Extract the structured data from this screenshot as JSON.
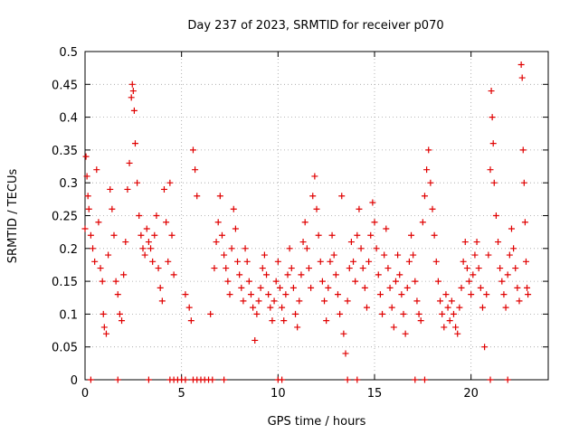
{
  "chart_data": {
    "type": "scatter",
    "title": "Day 237 of 2023, SRMTID for receiver p070",
    "xlabel": "GPS time / hours",
    "ylabel": "SRMTID / TECUs",
    "xlim": [
      0,
      24
    ],
    "ylim": [
      0,
      0.5
    ],
    "x_ticks": [
      0,
      5,
      10,
      15,
      20
    ],
    "x_tick_labels": [
      "0",
      "5",
      "10",
      "15",
      "20"
    ],
    "y_ticks": [
      0,
      0.05,
      0.1,
      0.15,
      0.2,
      0.25,
      0.3,
      0.35,
      0.4,
      0.45,
      0.5
    ],
    "y_tick_labels": [
      "0",
      "0.05",
      "0.1",
      "0.15",
      "0.2",
      "0.25",
      "0.3",
      "0.35",
      "0.4",
      "0.45",
      "0.5"
    ],
    "grid": true,
    "marker": "+",
    "series": [
      {
        "name": "SRMTID",
        "color": "#e00000",
        "points": [
          [
            0.0,
            0.23
          ],
          [
            0.05,
            0.34
          ],
          [
            0.1,
            0.31
          ],
          [
            0.15,
            0.28
          ],
          [
            0.2,
            0.26
          ],
          [
            0.3,
            0.22
          ],
          [
            0.4,
            0.2
          ],
          [
            0.5,
            0.18
          ],
          [
            0.6,
            0.32
          ],
          [
            0.7,
            0.24
          ],
          [
            0.8,
            0.17
          ],
          [
            0.9,
            0.15
          ],
          [
            0.95,
            0.1
          ],
          [
            1.0,
            0.08
          ],
          [
            1.1,
            0.07
          ],
          [
            1.2,
            0.19
          ],
          [
            1.3,
            0.29
          ],
          [
            1.4,
            0.26
          ],
          [
            1.5,
            0.22
          ],
          [
            1.6,
            0.15
          ],
          [
            1.7,
            0.13
          ],
          [
            1.8,
            0.1
          ],
          [
            1.9,
            0.09
          ],
          [
            2.0,
            0.16
          ],
          [
            2.1,
            0.21
          ],
          [
            2.2,
            0.29
          ],
          [
            2.3,
            0.33
          ],
          [
            2.4,
            0.43
          ],
          [
            2.45,
            0.45
          ],
          [
            2.5,
            0.44
          ],
          [
            2.55,
            0.41
          ],
          [
            2.6,
            0.36
          ],
          [
            2.7,
            0.3
          ],
          [
            2.8,
            0.25
          ],
          [
            2.9,
            0.22
          ],
          [
            3.0,
            0.2
          ],
          [
            3.1,
            0.19
          ],
          [
            3.2,
            0.23
          ],
          [
            3.3,
            0.21
          ],
          [
            3.4,
            0.2
          ],
          [
            3.5,
            0.18
          ],
          [
            3.6,
            0.22
          ],
          [
            3.7,
            0.25
          ],
          [
            3.8,
            0.17
          ],
          [
            3.9,
            0.14
          ],
          [
            4.0,
            0.12
          ],
          [
            4.1,
            0.29
          ],
          [
            4.2,
            0.24
          ],
          [
            4.3,
            0.18
          ],
          [
            4.4,
            0.3
          ],
          [
            4.5,
            0.22
          ],
          [
            4.6,
            0.16
          ],
          [
            5.2,
            0.13
          ],
          [
            5.4,
            0.11
          ],
          [
            5.5,
            0.09
          ],
          [
            5.6,
            0.35
          ],
          [
            5.7,
            0.32
          ],
          [
            5.8,
            0.28
          ],
          [
            6.5,
            0.1
          ],
          [
            6.7,
            0.17
          ],
          [
            6.8,
            0.21
          ],
          [
            6.9,
            0.24
          ],
          [
            7.0,
            0.28
          ],
          [
            7.1,
            0.22
          ],
          [
            7.2,
            0.19
          ],
          [
            7.3,
            0.17
          ],
          [
            7.4,
            0.15
          ],
          [
            7.5,
            0.13
          ],
          [
            7.6,
            0.2
          ],
          [
            7.7,
            0.26
          ],
          [
            7.8,
            0.23
          ],
          [
            7.9,
            0.18
          ],
          [
            8.0,
            0.16
          ],
          [
            8.1,
            0.14
          ],
          [
            8.2,
            0.12
          ],
          [
            8.3,
            0.2
          ],
          [
            8.4,
            0.18
          ],
          [
            8.5,
            0.15
          ],
          [
            8.6,
            0.13
          ],
          [
            8.7,
            0.11
          ],
          [
            8.8,
            0.06
          ],
          [
            8.9,
            0.1
          ],
          [
            9.0,
            0.12
          ],
          [
            9.1,
            0.14
          ],
          [
            9.2,
            0.17
          ],
          [
            9.3,
            0.19
          ],
          [
            9.4,
            0.16
          ],
          [
            9.5,
            0.13
          ],
          [
            9.6,
            0.11
          ],
          [
            9.7,
            0.09
          ],
          [
            9.8,
            0.12
          ],
          [
            9.9,
            0.15
          ],
          [
            10.0,
            0.18
          ],
          [
            10.1,
            0.14
          ],
          [
            10.2,
            0.11
          ],
          [
            10.3,
            0.09
          ],
          [
            10.4,
            0.13
          ],
          [
            10.5,
            0.16
          ],
          [
            10.6,
            0.2
          ],
          [
            10.7,
            0.17
          ],
          [
            10.8,
            0.14
          ],
          [
            10.9,
            0.1
          ],
          [
            11.0,
            0.08
          ],
          [
            11.1,
            0.12
          ],
          [
            11.2,
            0.16
          ],
          [
            11.3,
            0.21
          ],
          [
            11.4,
            0.24
          ],
          [
            11.5,
            0.2
          ],
          [
            11.6,
            0.17
          ],
          [
            11.7,
            0.14
          ],
          [
            11.8,
            0.28
          ],
          [
            11.9,
            0.31
          ],
          [
            12.0,
            0.26
          ],
          [
            12.1,
            0.22
          ],
          [
            12.2,
            0.18
          ],
          [
            12.3,
            0.15
          ],
          [
            12.4,
            0.12
          ],
          [
            12.5,
            0.09
          ],
          [
            12.6,
            0.14
          ],
          [
            12.7,
            0.18
          ],
          [
            12.8,
            0.22
          ],
          [
            12.9,
            0.19
          ],
          [
            13.0,
            0.16
          ],
          [
            13.1,
            0.13
          ],
          [
            13.2,
            0.1
          ],
          [
            13.3,
            0.28
          ],
          [
            13.4,
            0.07
          ],
          [
            13.5,
            0.04
          ],
          [
            13.6,
            0.12
          ],
          [
            13.7,
            0.17
          ],
          [
            13.8,
            0.21
          ],
          [
            13.9,
            0.18
          ],
          [
            14.0,
            0.15
          ],
          [
            14.1,
            0.22
          ],
          [
            14.2,
            0.26
          ],
          [
            14.3,
            0.2
          ],
          [
            14.4,
            0.17
          ],
          [
            14.5,
            0.14
          ],
          [
            14.6,
            0.11
          ],
          [
            14.7,
            0.18
          ],
          [
            14.8,
            0.22
          ],
          [
            14.9,
            0.27
          ],
          [
            15.0,
            0.24
          ],
          [
            15.1,
            0.2
          ],
          [
            15.2,
            0.16
          ],
          [
            15.3,
            0.13
          ],
          [
            15.4,
            0.1
          ],
          [
            15.5,
            0.19
          ],
          [
            15.6,
            0.23
          ],
          [
            15.7,
            0.17
          ],
          [
            15.8,
            0.14
          ],
          [
            15.9,
            0.11
          ],
          [
            16.0,
            0.08
          ],
          [
            16.1,
            0.15
          ],
          [
            16.2,
            0.19
          ],
          [
            16.3,
            0.16
          ],
          [
            16.4,
            0.13
          ],
          [
            16.5,
            0.1
          ],
          [
            16.6,
            0.07
          ],
          [
            16.7,
            0.14
          ],
          [
            16.8,
            0.18
          ],
          [
            16.9,
            0.22
          ],
          [
            17.0,
            0.19
          ],
          [
            17.1,
            0.15
          ],
          [
            17.2,
            0.12
          ],
          [
            17.3,
            0.1
          ],
          [
            17.4,
            0.09
          ],
          [
            17.5,
            0.24
          ],
          [
            17.6,
            0.28
          ],
          [
            17.7,
            0.32
          ],
          [
            17.8,
            0.35
          ],
          [
            17.9,
            0.3
          ],
          [
            18.0,
            0.26
          ],
          [
            18.1,
            0.22
          ],
          [
            18.2,
            0.18
          ],
          [
            18.3,
            0.15
          ],
          [
            18.4,
            0.12
          ],
          [
            18.5,
            0.1
          ],
          [
            18.6,
            0.08
          ],
          [
            18.7,
            0.13
          ],
          [
            18.8,
            0.11
          ],
          [
            18.9,
            0.09
          ],
          [
            19.0,
            0.12
          ],
          [
            19.1,
            0.1
          ],
          [
            19.2,
            0.08
          ],
          [
            19.3,
            0.07
          ],
          [
            19.4,
            0.11
          ],
          [
            19.5,
            0.14
          ],
          [
            19.6,
            0.18
          ],
          [
            19.7,
            0.21
          ],
          [
            19.8,
            0.17
          ],
          [
            19.9,
            0.15
          ],
          [
            20.0,
            0.13
          ],
          [
            20.1,
            0.16
          ],
          [
            20.2,
            0.19
          ],
          [
            20.3,
            0.21
          ],
          [
            20.4,
            0.17
          ],
          [
            20.5,
            0.14
          ],
          [
            20.6,
            0.11
          ],
          [
            20.7,
            0.05
          ],
          [
            20.8,
            0.13
          ],
          [
            20.9,
            0.19
          ],
          [
            21.0,
            0.32
          ],
          [
            21.05,
            0.44
          ],
          [
            21.1,
            0.4
          ],
          [
            21.15,
            0.36
          ],
          [
            21.2,
            0.3
          ],
          [
            21.3,
            0.25
          ],
          [
            21.4,
            0.21
          ],
          [
            21.5,
            0.17
          ],
          [
            21.6,
            0.15
          ],
          [
            21.7,
            0.13
          ],
          [
            21.8,
            0.11
          ],
          [
            21.9,
            0.16
          ],
          [
            22.0,
            0.19
          ],
          [
            22.1,
            0.23
          ],
          [
            22.2,
            0.2
          ],
          [
            22.3,
            0.17
          ],
          [
            22.4,
            0.14
          ],
          [
            22.5,
            0.12
          ],
          [
            22.6,
            0.48
          ],
          [
            22.65,
            0.46
          ],
          [
            22.7,
            0.35
          ],
          [
            22.75,
            0.3
          ],
          [
            22.8,
            0.24
          ],
          [
            22.85,
            0.18
          ],
          [
            22.9,
            0.14
          ],
          [
            22.95,
            0.13
          ],
          [
            0.3,
            0.0
          ],
          [
            1.7,
            0.0
          ],
          [
            3.3,
            0.0
          ],
          [
            4.4,
            0.0
          ],
          [
            4.6,
            0.0
          ],
          [
            4.8,
            0.0
          ],
          [
            5.0,
            0.0
          ],
          [
            5.2,
            0.0
          ],
          [
            5.6,
            0.0
          ],
          [
            5.8,
            0.0
          ],
          [
            6.0,
            0.0
          ],
          [
            6.2,
            0.0
          ],
          [
            6.4,
            0.0
          ],
          [
            6.6,
            0.0
          ],
          [
            7.2,
            0.0
          ],
          [
            10.0,
            0.0
          ],
          [
            10.2,
            0.0
          ],
          [
            13.6,
            0.0
          ],
          [
            14.1,
            0.0
          ],
          [
            17.1,
            0.0
          ],
          [
            17.6,
            0.0
          ],
          [
            21.0,
            0.0
          ],
          [
            21.9,
            0.0
          ]
        ]
      }
    ]
  }
}
